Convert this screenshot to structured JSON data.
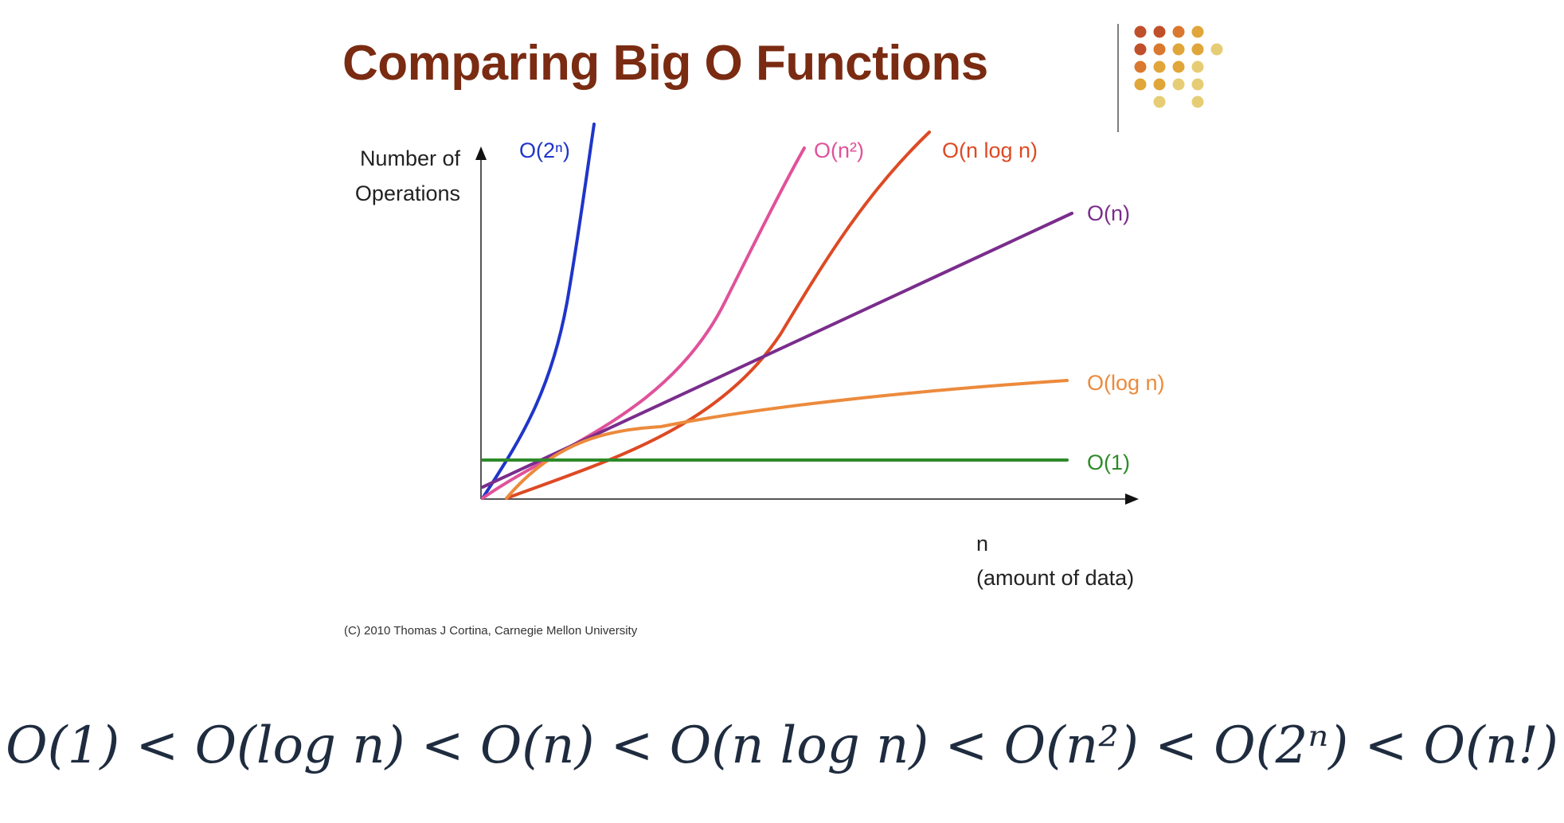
{
  "slide": {
    "title": "Comparing Big O Functions",
    "copyright": "(C) 2010 Thomas J Cortina, Carnegie Mellon University",
    "complexity_order": "O(1) < O(log n) < O(n) < O(n log n) < O(n²) < O(2ⁿ) < O(n!)"
  },
  "logo": {
    "icon": "dot-grid-logo-icon",
    "colors": [
      "#c0502a",
      "#d9782e",
      "#e0a63a",
      "#e6cd75"
    ]
  },
  "chart_data": {
    "type": "line",
    "ylabel_lines": [
      "Number of",
      "Operations"
    ],
    "xlabel_lines": [
      "n",
      "(amount of data)"
    ],
    "grid": false,
    "ticks": false,
    "series": [
      {
        "name": "O(2ⁿ)",
        "function": "2^n",
        "color": "#1f35c9"
      },
      {
        "name": "O(n²)",
        "function": "n^2",
        "color": "#e0529a"
      },
      {
        "name": "O(n log n)",
        "function": "n log n",
        "color": "#dd4a24"
      },
      {
        "name": "O(n)",
        "function": "n",
        "color": "#7a2d8c"
      },
      {
        "name": "O(log n)",
        "function": "log n",
        "color": "#ec8a3c"
      },
      {
        "name": "O(1)",
        "function": "1",
        "color": "#2e8a2a"
      }
    ]
  }
}
